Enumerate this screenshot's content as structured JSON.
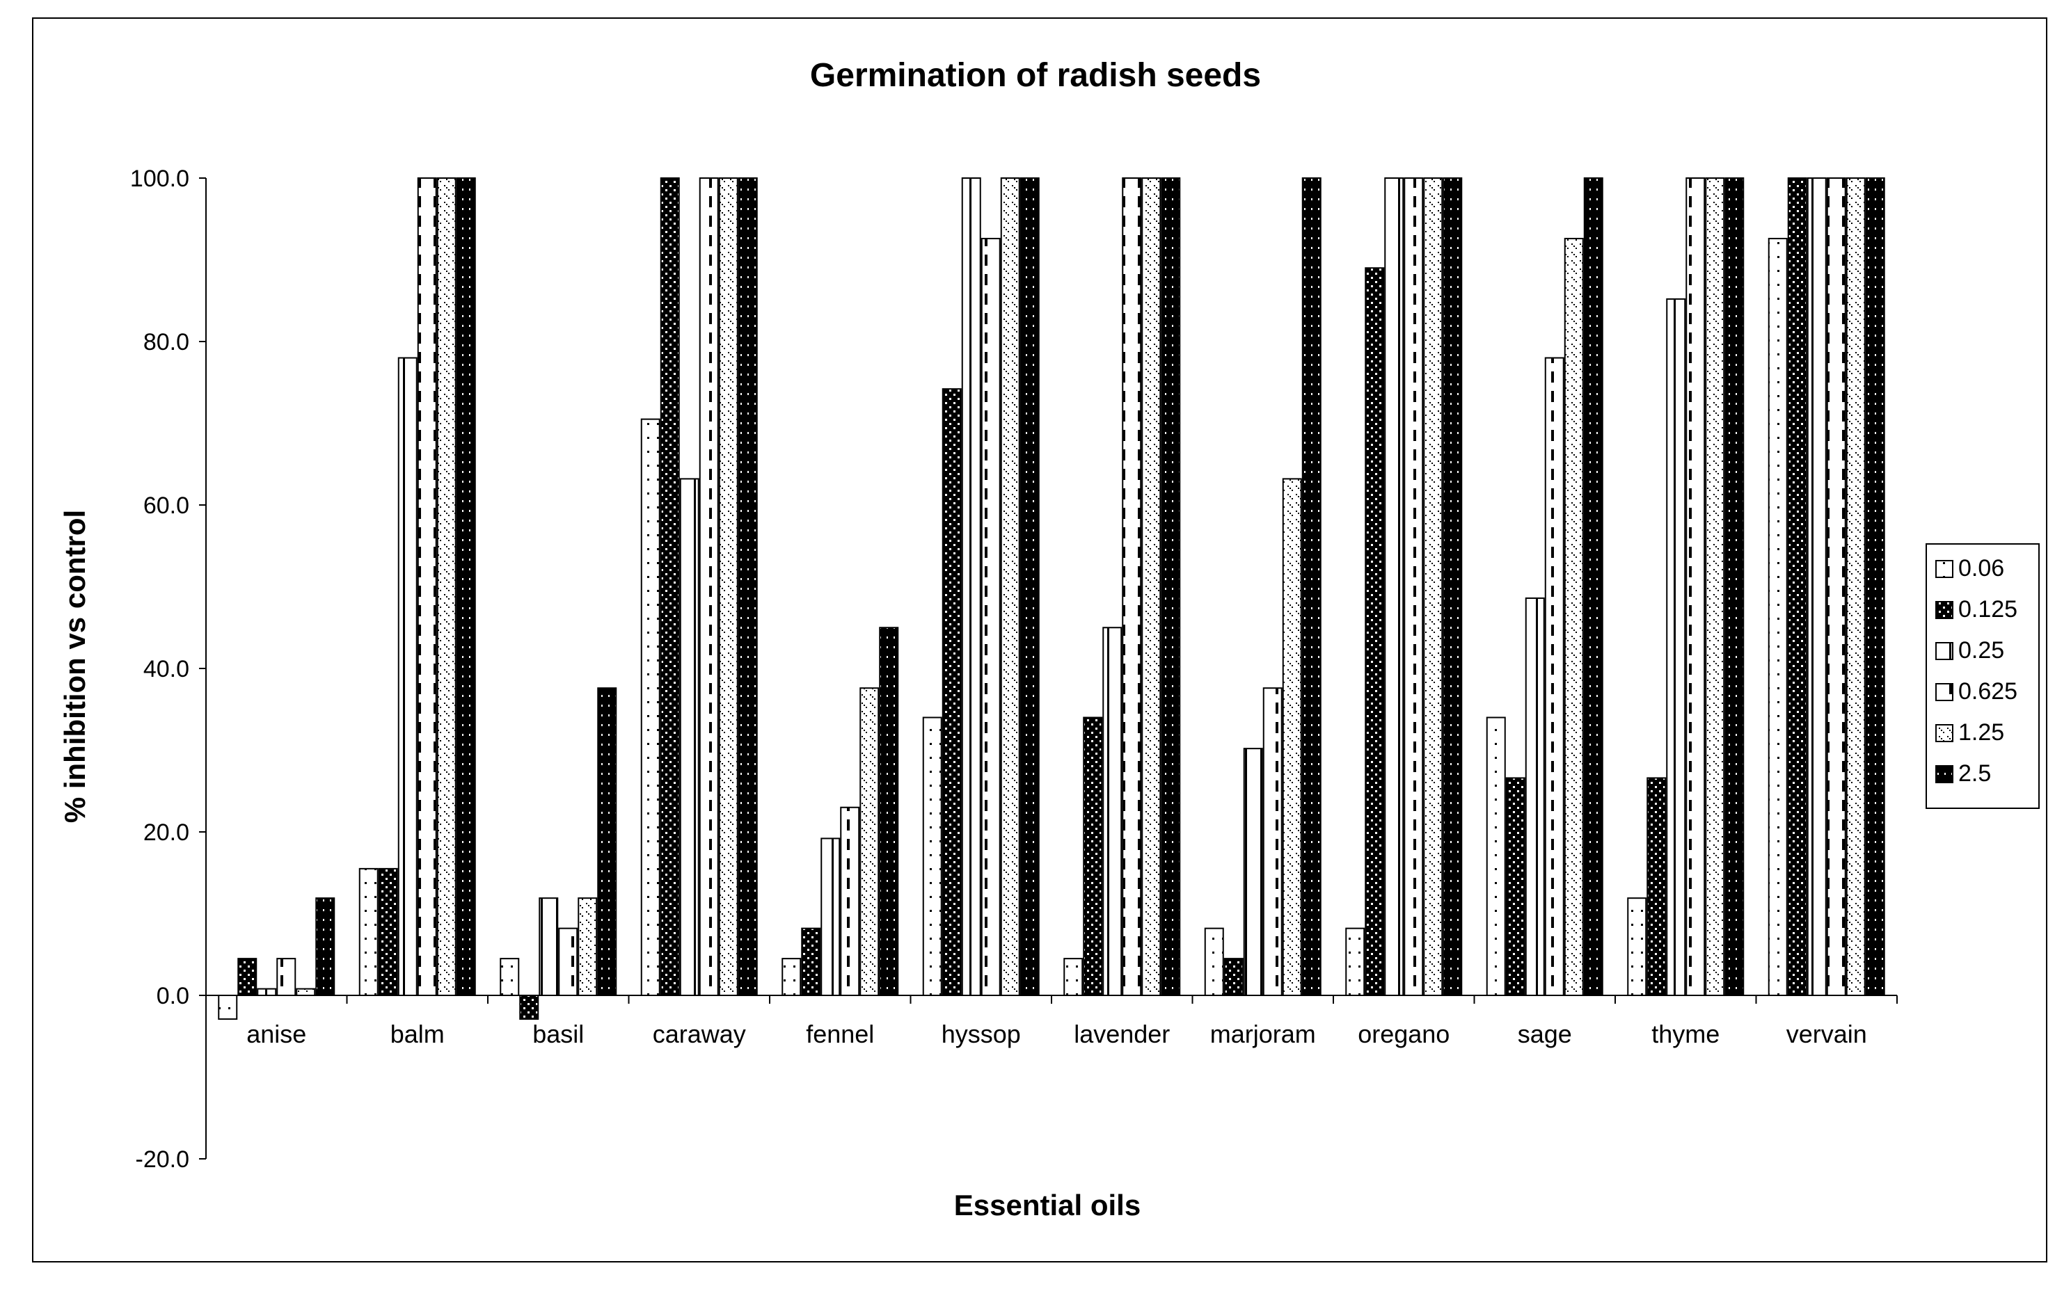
{
  "chart_data": {
    "type": "bar",
    "title": "Germination of radish seeds",
    "xlabel": "Essential oils",
    "ylabel": "% inhibition vs control",
    "ylim": [
      -20,
      100
    ],
    "yticks": [
      "100.0",
      "80.0",
      "60.0",
      "40.0",
      "20.0",
      "0.0",
      "-20.0"
    ],
    "grid": false,
    "legend_position": "right",
    "categories": [
      "anise",
      "balm",
      "basil",
      "caraway",
      "fennel",
      "hyssop",
      "lavender",
      "marjoram",
      "oregano",
      "sage",
      "thyme",
      "vervain"
    ],
    "series": [
      {
        "name": "0.06",
        "pattern": "sparse-dots",
        "values": [
          -2.9,
          15.5,
          4.5,
          70.5,
          4.5,
          34.0,
          4.5,
          8.2,
          8.2,
          34.0,
          11.9,
          92.6
        ]
      },
      {
        "name": "0.125",
        "pattern": "dark-dots",
        "values": [
          4.5,
          15.5,
          -2.9,
          100,
          8.2,
          74.2,
          34.0,
          4.5,
          89.0,
          26.6,
          26.6,
          100
        ]
      },
      {
        "name": "0.25",
        "pattern": "vertical-line",
        "values": [
          0.8,
          78.0,
          11.9,
          63.2,
          19.2,
          100,
          45.0,
          30.2,
          100,
          48.6,
          85.2,
          100
        ]
      },
      {
        "name": "0.625",
        "pattern": "dashed-vertical",
        "values": [
          4.5,
          100,
          8.2,
          100,
          23.0,
          92.6,
          100,
          37.6,
          100,
          78.0,
          100,
          100
        ]
      },
      {
        "name": "1.25",
        "pattern": "diagonal-dots",
        "values": [
          0.8,
          100,
          11.9,
          100,
          37.6,
          100,
          100,
          63.2,
          100,
          92.6,
          100,
          100
        ]
      },
      {
        "name": "2.5",
        "pattern": "dark-dense",
        "values": [
          11.9,
          100,
          37.6,
          100,
          45.0,
          100,
          100,
          100,
          100,
          100,
          100,
          100
        ]
      }
    ]
  }
}
